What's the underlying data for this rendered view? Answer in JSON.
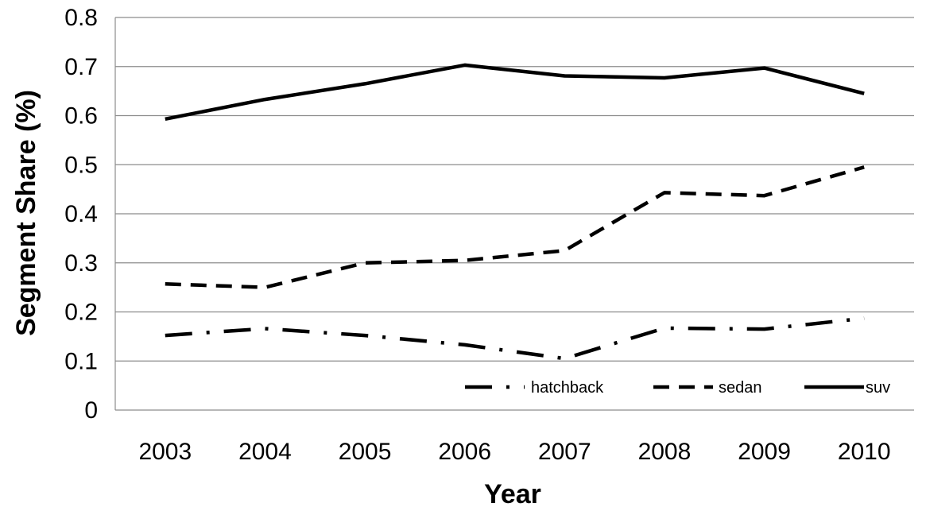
{
  "chart_data": {
    "type": "line",
    "categories": [
      "2003",
      "2004",
      "2005",
      "2006",
      "2007",
      "2008",
      "2009",
      "2010"
    ],
    "series": [
      {
        "name": "hatchback",
        "dash": "dashdot",
        "values": [
          0.152,
          0.166,
          0.152,
          0.133,
          0.105,
          0.167,
          0.165,
          0.187
        ]
      },
      {
        "name": "sedan",
        "dash": "dash",
        "values": [
          0.257,
          0.25,
          0.3,
          0.305,
          0.325,
          0.443,
          0.437,
          0.495
        ]
      },
      {
        "name": "suv",
        "dash": "solid",
        "values": [
          0.593,
          0.633,
          0.665,
          0.703,
          0.681,
          0.677,
          0.697,
          0.645
        ]
      }
    ],
    "xlabel": "Year",
    "ylabel": "Segment Share (%)",
    "ylim": [
      0,
      0.8
    ],
    "yticks": [
      "0",
      "0.1",
      "0.2",
      "0.3",
      "0.4",
      "0.5",
      "0.6",
      "0.7",
      "0.8"
    ],
    "grid": true,
    "legend_position": "bottom-right inside"
  }
}
